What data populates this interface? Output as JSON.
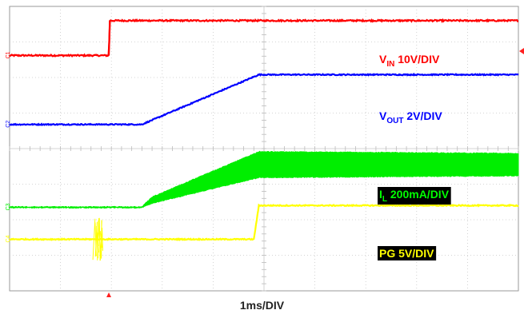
{
  "chart_data": {
    "type": "line",
    "title": "",
    "xlabel": "1ms/DIV",
    "ylabel": "",
    "grid": true,
    "divisions": {
      "x": 10,
      "y": 8
    },
    "xlim": [
      0,
      10
    ],
    "ylim": [
      0,
      8
    ],
    "series": [
      {
        "key": "vin",
        "label_main": "V",
        "label_sub": "IN",
        "label_rest": " 10V/DIV",
        "color": "#ff0000",
        "label_bg": "",
        "label_color": "#ff0000",
        "marker": "C1",
        "x": [
          0,
          1.95,
          1.97,
          10
        ],
        "y": [
          6.62,
          6.62,
          7.6,
          7.6
        ],
        "noise": 0.04
      },
      {
        "key": "vout",
        "label_main": "V",
        "label_sub": "OUT",
        "label_rest": " 2V/DIV",
        "color": "#0000ff",
        "label_bg": "",
        "label_color": "#0000ff",
        "marker": "C2",
        "x": [
          0,
          2.6,
          4.9,
          10
        ],
        "y": [
          4.68,
          4.68,
          6.08,
          6.08
        ],
        "noise": 0.03
      },
      {
        "key": "il",
        "label_main": "I",
        "label_sub": "L",
        "label_rest": " 200mA/DIV",
        "color": "#00ee00",
        "label_bg": "#000000",
        "label_color": "#00ff00",
        "marker": "C3",
        "x": [
          0,
          2.6,
          2.8,
          4.9,
          10
        ],
        "y": [
          2.35,
          2.35,
          2.55,
          3.55,
          3.55
        ],
        "noise": 0.05,
        "band": [
          0,
          0,
          0.15,
          0.7,
          0.6
        ]
      },
      {
        "key": "pg",
        "label_main": "PG",
        "label_sub": "",
        "label_rest": " 5V/DIV",
        "color": "#ffff00",
        "label_bg": "#000000",
        "label_color": "#ffff00",
        "marker": "C4",
        "x": [
          0,
          4.8,
          4.9,
          10
        ],
        "y": [
          1.45,
          1.45,
          2.4,
          2.4
        ],
        "noise": 0.03
      }
    ]
  }
}
